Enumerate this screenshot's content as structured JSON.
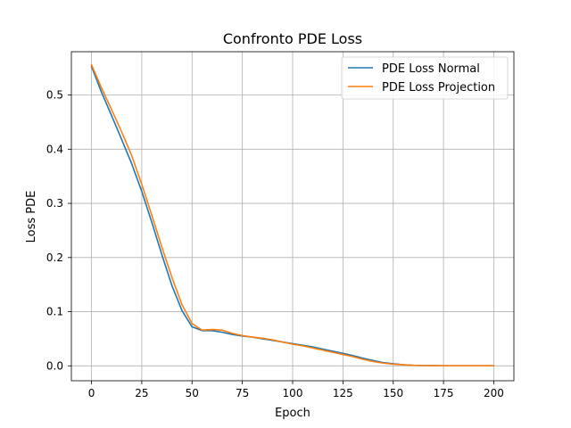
{
  "chart_data": {
    "type": "line",
    "title": "Confronto PDE Loss",
    "xlabel": "Epoch",
    "ylabel": "Loss PDE",
    "xlim": [
      -10,
      210
    ],
    "ylim": [
      -0.0275,
      0.58
    ],
    "xticks": [
      0,
      25,
      50,
      75,
      100,
      125,
      150,
      175,
      200
    ],
    "yticks": [
      0.0,
      0.1,
      0.2,
      0.3,
      0.4,
      0.5
    ],
    "ytick_labels": [
      "0.0",
      "0.1",
      "0.2",
      "0.3",
      "0.4",
      "0.5"
    ],
    "grid": true,
    "legend": {
      "position": "top-right",
      "entries": [
        "PDE Loss Normal",
        "PDE Loss Projection"
      ]
    },
    "series": [
      {
        "name": "PDE Loss Normal",
        "color": "#1f77b4",
        "x": [
          0,
          5,
          10,
          15,
          20,
          25,
          30,
          35,
          40,
          45,
          50,
          55,
          60,
          65,
          70,
          75,
          80,
          85,
          90,
          95,
          100,
          105,
          110,
          115,
          120,
          125,
          130,
          135,
          140,
          145,
          150,
          155,
          160,
          165,
          170,
          175,
          180,
          185,
          190,
          195,
          200
        ],
        "values": [
          0.553,
          0.505,
          0.462,
          0.418,
          0.373,
          0.322,
          0.265,
          0.205,
          0.148,
          0.102,
          0.072,
          0.065,
          0.065,
          0.062,
          0.058,
          0.055,
          0.053,
          0.05,
          0.047,
          0.044,
          0.041,
          0.038,
          0.035,
          0.031,
          0.027,
          0.023,
          0.019,
          0.014,
          0.01,
          0.006,
          0.004,
          0.002,
          0.001,
          0.0005,
          0.0003,
          0.0002,
          0.0002,
          0.0002,
          0.0002,
          0.0002,
          0.0002
        ]
      },
      {
        "name": "PDE Loss Projection",
        "color": "#ff7f0e",
        "x": [
          0,
          5,
          10,
          15,
          20,
          25,
          30,
          35,
          40,
          45,
          50,
          55,
          60,
          65,
          70,
          75,
          80,
          85,
          90,
          95,
          100,
          105,
          110,
          115,
          120,
          125,
          130,
          135,
          140,
          145,
          150,
          155,
          160,
          165,
          170,
          175,
          180,
          185,
          190,
          195,
          200
        ],
        "values": [
          0.556,
          0.513,
          0.473,
          0.432,
          0.388,
          0.335,
          0.278,
          0.219,
          0.163,
          0.113,
          0.078,
          0.066,
          0.067,
          0.066,
          0.06,
          0.056,
          0.053,
          0.051,
          0.048,
          0.044,
          0.04,
          0.037,
          0.033,
          0.029,
          0.025,
          0.021,
          0.017,
          0.012,
          0.008,
          0.005,
          0.003,
          0.002,
          0.001,
          0.0005,
          0.0003,
          0.0002,
          0.0002,
          0.0002,
          0.0002,
          0.0002,
          0.0002
        ]
      }
    ]
  }
}
